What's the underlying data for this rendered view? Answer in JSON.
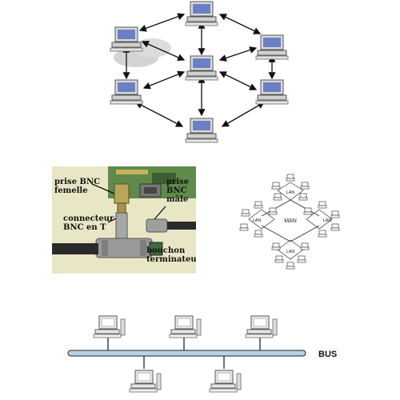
{
  "bnc": {
    "prise_femelle": "prise BNC\nfemelle",
    "prise_male": "prise\nBNC\nmâle",
    "connecteur": "connecteur\nBNC en T",
    "bouchon": "bouchon\nterminateur"
  },
  "man": {
    "center_label": "MAN",
    "lan_label": "LAN"
  },
  "bus": {
    "label": "BUS"
  },
  "colors": {
    "screen": "#6a7fc4",
    "bus_bar": "#b8d0e8",
    "cable": "#222222"
  }
}
